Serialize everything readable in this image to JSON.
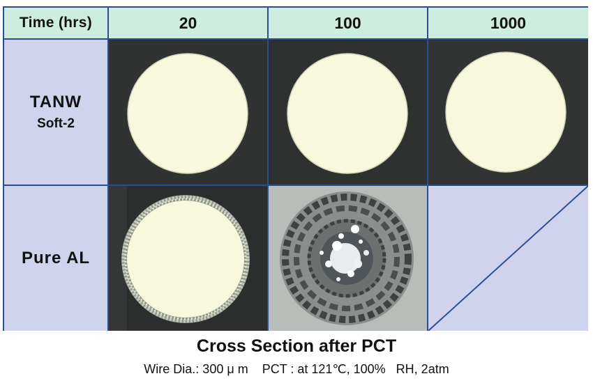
{
  "table": {
    "corner_label": "Time (hrs)",
    "columns": [
      "20",
      "100",
      "1000"
    ],
    "rows": [
      {
        "label": "TANW",
        "sublabel": "Soft-2"
      },
      {
        "label": "Pure AL",
        "sublabel": ""
      }
    ]
  },
  "caption": {
    "title": "Cross Section after PCT",
    "subtitle": "Wire Dia.: 300 μ m    PCT : at 121℃, 100%   RH, 2atm"
  },
  "colors": {
    "border": "#2c4d8f",
    "header_bg": "#cdeede",
    "label_bg": "#d0d3ee",
    "photo_bg": "#2f3231",
    "wire_fill": "#f7f8dc"
  }
}
